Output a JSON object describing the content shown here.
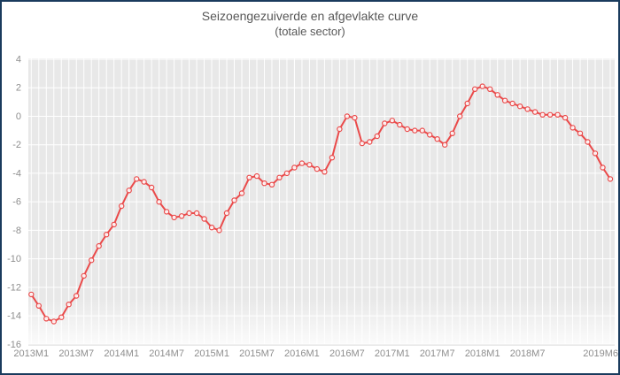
{
  "colors": {
    "frame_border": "#1a3b5d",
    "plot_bg": "#e8e8e8",
    "plot_bg_fade": "#fbfbfb",
    "grid": "#ffffff",
    "axis_line": "#d9d9d9",
    "line": "#ea4a4a",
    "marker_fill": "#ffffff",
    "title_text": "#575757",
    "tick_text": "#8e8e8e"
  },
  "chart_data": {
    "type": "line",
    "title": "Seizoengezuiverde en afgevlakte curve",
    "subtitle": "(totale sector)",
    "xlabel": "",
    "ylabel": "",
    "ylim": [
      -16,
      4
    ],
    "y_ticks": [
      4,
      2,
      0,
      -2,
      -4,
      -6,
      -8,
      -10,
      -12,
      -14,
      -16
    ],
    "x_tick_positions": [
      0,
      6,
      12,
      18,
      24,
      30,
      36,
      42,
      48,
      54,
      60,
      66,
      77
    ],
    "x_tick_labels": [
      "2013M1",
      "2013M7",
      "2014M1",
      "2014M7",
      "2015M1",
      "2015M7",
      "2016M1",
      "2016M7",
      "2017M1",
      "2017M7",
      "2018M1",
      "2018M7",
      "2019M6"
    ],
    "grid": "white gridlines on gray panel, vertical every month, horizontal every 2 units",
    "legend": "none",
    "marker": "open-circle",
    "x": [
      "2013M1",
      "2013M2",
      "2013M3",
      "2013M4",
      "2013M5",
      "2013M6",
      "2013M7",
      "2013M8",
      "2013M9",
      "2013M10",
      "2013M11",
      "2013M12",
      "2014M1",
      "2014M2",
      "2014M3",
      "2014M4",
      "2014M5",
      "2014M6",
      "2014M7",
      "2014M8",
      "2014M9",
      "2014M10",
      "2014M11",
      "2014M12",
      "2015M1",
      "2015M2",
      "2015M3",
      "2015M4",
      "2015M5",
      "2015M6",
      "2015M7",
      "2015M8",
      "2015M9",
      "2015M10",
      "2015M11",
      "2015M12",
      "2016M1",
      "2016M2",
      "2016M3",
      "2016M4",
      "2016M5",
      "2016M6",
      "2016M7",
      "2016M8",
      "2016M9",
      "2016M10",
      "2016M11",
      "2016M12",
      "2017M1",
      "2017M2",
      "2017M3",
      "2017M4",
      "2017M5",
      "2017M6",
      "2017M7",
      "2017M8",
      "2017M9",
      "2017M10",
      "2017M11",
      "2017M12",
      "2018M1",
      "2018M2",
      "2018M3",
      "2018M4",
      "2018M5",
      "2018M6",
      "2018M7",
      "2018M8",
      "2018M9",
      "2018M10",
      "2018M11",
      "2018M12",
      "2019M1",
      "2019M2",
      "2019M3",
      "2019M4",
      "2019M5",
      "2019M6"
    ],
    "values": [
      -12.5,
      -13.3,
      -14.2,
      -14.4,
      -14.1,
      -13.2,
      -12.6,
      -11.2,
      -10.1,
      -9.1,
      -8.3,
      -7.6,
      -6.3,
      -5.2,
      -4.4,
      -4.6,
      -5.0,
      -6.0,
      -6.7,
      -7.1,
      -7.0,
      -6.8,
      -6.8,
      -7.2,
      -7.8,
      -8.0,
      -6.8,
      -5.9,
      -5.4,
      -4.3,
      -4.2,
      -4.7,
      -4.8,
      -4.3,
      -4.0,
      -3.6,
      -3.3,
      -3.4,
      -3.7,
      -3.9,
      -2.9,
      -0.9,
      0.0,
      -0.1,
      -1.9,
      -1.8,
      -1.4,
      -0.5,
      -0.3,
      -0.6,
      -0.9,
      -1.0,
      -1.0,
      -1.3,
      -1.6,
      -2.0,
      -1.2,
      0.0,
      0.9,
      1.9,
      2.1,
      1.9,
      1.5,
      1.1,
      0.9,
      0.7,
      0.5,
      0.3,
      0.1,
      0.1,
      0.1,
      -0.1,
      -0.8,
      -1.2,
      -1.8,
      -2.6,
      -3.6,
      -4.4
    ]
  }
}
